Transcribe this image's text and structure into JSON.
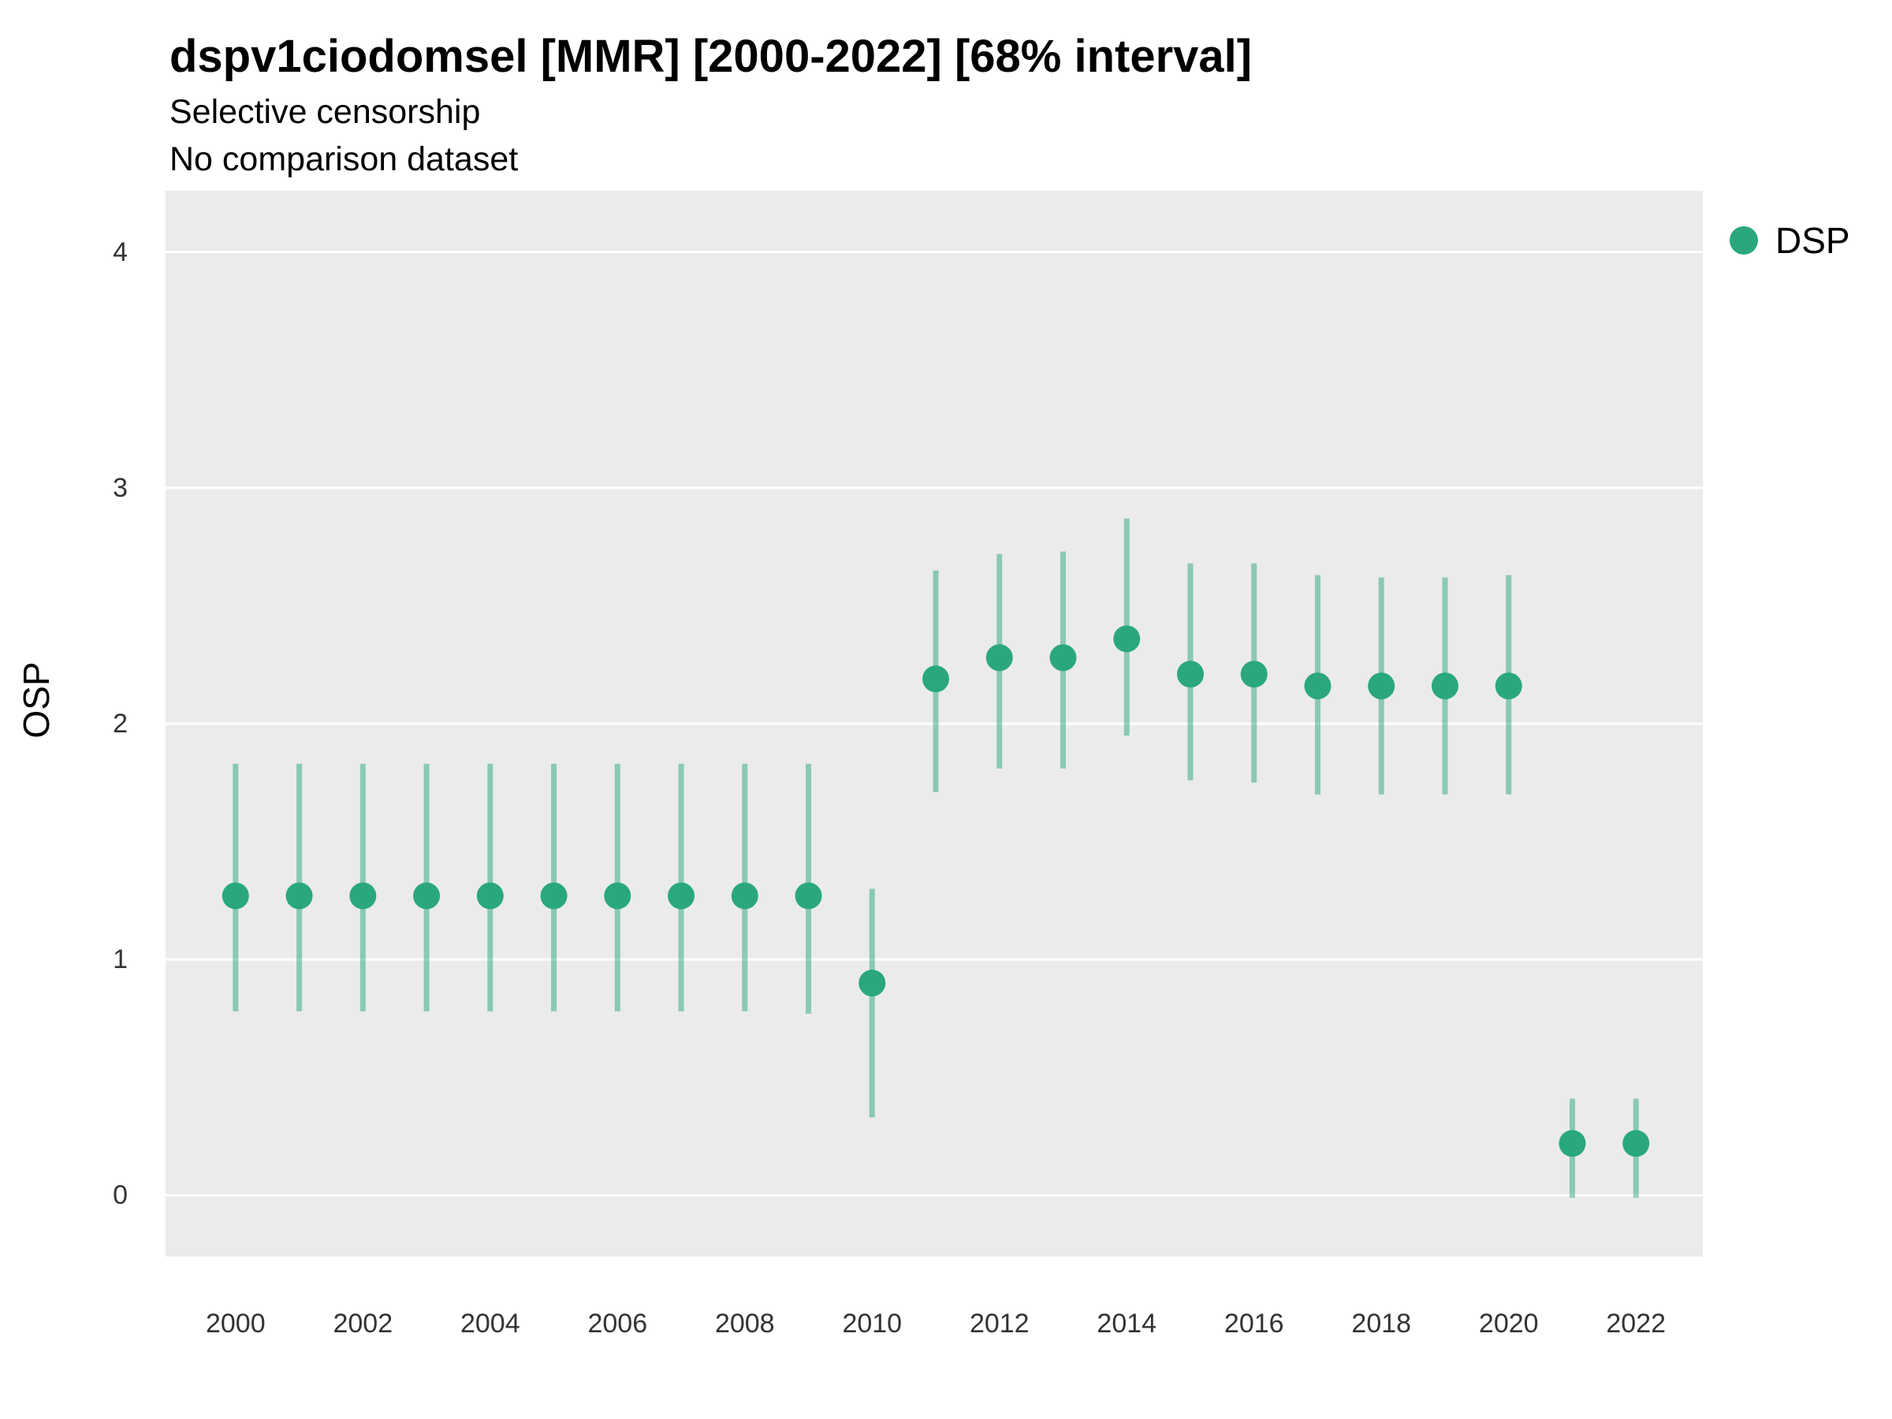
{
  "chart_data": {
    "type": "pointrange",
    "title": "dspv1ciodomsel [MMR] [2000-2022] [68% interval]",
    "subtitle_lines": [
      "Selective censorship",
      "No comparison dataset"
    ],
    "xlabel": "",
    "ylabel": "OSP",
    "x_ticks": [
      2000,
      2002,
      2004,
      2006,
      2008,
      2010,
      2012,
      2014,
      2016,
      2018,
      2020,
      2022
    ],
    "y_ticks": [
      0,
      1,
      2,
      3,
      4
    ],
    "xlim": [
      1998.9,
      2023.05
    ],
    "ylim": [
      -0.26,
      4.26
    ],
    "grid": "major-horizontal",
    "panel_bg": "#ebebeb",
    "gridline_color": "#ffffff",
    "legend": {
      "position": "right",
      "entries": [
        {
          "label": "DSP",
          "color": "#2aa87c"
        }
      ]
    },
    "colors": {
      "point": "#2aa87c",
      "interval": "#2aa87c",
      "interval_opacity": 0.5
    },
    "series": [
      {
        "name": "DSP",
        "points": [
          {
            "x": 2000,
            "y": 1.27,
            "ymin": 0.78,
            "ymax": 1.83
          },
          {
            "x": 2001,
            "y": 1.27,
            "ymin": 0.78,
            "ymax": 1.83
          },
          {
            "x": 2002,
            "y": 1.27,
            "ymin": 0.78,
            "ymax": 1.83
          },
          {
            "x": 2003,
            "y": 1.27,
            "ymin": 0.78,
            "ymax": 1.83
          },
          {
            "x": 2004,
            "y": 1.27,
            "ymin": 0.78,
            "ymax": 1.83
          },
          {
            "x": 2005,
            "y": 1.27,
            "ymin": 0.78,
            "ymax": 1.83
          },
          {
            "x": 2006,
            "y": 1.27,
            "ymin": 0.78,
            "ymax": 1.83
          },
          {
            "x": 2007,
            "y": 1.27,
            "ymin": 0.78,
            "ymax": 1.83
          },
          {
            "x": 2008,
            "y": 1.27,
            "ymin": 0.78,
            "ymax": 1.83
          },
          {
            "x": 2009,
            "y": 1.27,
            "ymin": 0.77,
            "ymax": 1.83
          },
          {
            "x": 2010,
            "y": 0.9,
            "ymin": 0.33,
            "ymax": 1.3
          },
          {
            "x": 2011,
            "y": 2.19,
            "ymin": 1.71,
            "ymax": 2.65
          },
          {
            "x": 2012,
            "y": 2.28,
            "ymin": 1.81,
            "ymax": 2.72
          },
          {
            "x": 2013,
            "y": 2.28,
            "ymin": 1.81,
            "ymax": 2.73
          },
          {
            "x": 2014,
            "y": 2.36,
            "ymin": 1.95,
            "ymax": 2.87
          },
          {
            "x": 2015,
            "y": 2.21,
            "ymin": 1.76,
            "ymax": 2.68
          },
          {
            "x": 2016,
            "y": 2.21,
            "ymin": 1.75,
            "ymax": 2.68
          },
          {
            "x": 2017,
            "y": 2.16,
            "ymin": 1.7,
            "ymax": 2.63
          },
          {
            "x": 2018,
            "y": 2.16,
            "ymin": 1.7,
            "ymax": 2.62
          },
          {
            "x": 2019,
            "y": 2.16,
            "ymin": 1.7,
            "ymax": 2.62
          },
          {
            "x": 2020,
            "y": 2.16,
            "ymin": 1.7,
            "ymax": 2.63
          },
          {
            "x": 2021,
            "y": 0.22,
            "ymin": -0.01,
            "ymax": 0.41
          },
          {
            "x": 2022,
            "y": 0.22,
            "ymin": -0.01,
            "ymax": 0.41
          }
        ]
      }
    ]
  }
}
